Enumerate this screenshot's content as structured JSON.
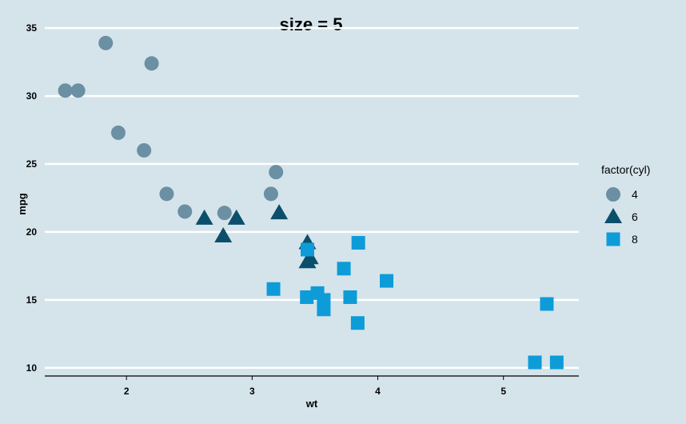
{
  "chart_data": {
    "type": "scatter",
    "title": "size = 5",
    "xlabel": "wt",
    "ylabel": "mpg",
    "xlim": [
      1.35,
      5.6
    ],
    "ylim": [
      9.4,
      35.3
    ],
    "xticks": [
      2,
      3,
      4,
      5
    ],
    "yticks": [
      10,
      15,
      20,
      25,
      30,
      35
    ],
    "grid": "horizontal-major",
    "legend": {
      "title": "factor(cyl)",
      "position": "right"
    },
    "series": [
      {
        "name": "4",
        "shape": "circle",
        "color": "#6b8fa3",
        "points": [
          {
            "x": 2.32,
            "y": 22.8
          },
          {
            "x": 3.19,
            "y": 24.4
          },
          {
            "x": 3.15,
            "y": 22.8
          },
          {
            "x": 2.2,
            "y": 32.4
          },
          {
            "x": 1.615,
            "y": 30.4
          },
          {
            "x": 1.835,
            "y": 33.9
          },
          {
            "x": 2.465,
            "y": 21.5
          },
          {
            "x": 1.935,
            "y": 27.3
          },
          {
            "x": 2.14,
            "y": 26.0
          },
          {
            "x": 1.513,
            "y": 30.4
          },
          {
            "x": 2.78,
            "y": 21.4
          }
        ]
      },
      {
        "name": "6",
        "shape": "triangle",
        "color": "#0b4f6c",
        "points": [
          {
            "x": 2.62,
            "y": 21.0
          },
          {
            "x": 2.875,
            "y": 21.0
          },
          {
            "x": 3.215,
            "y": 21.4
          },
          {
            "x": 3.46,
            "y": 18.1
          },
          {
            "x": 3.44,
            "y": 19.2
          },
          {
            "x": 3.44,
            "y": 17.8
          },
          {
            "x": 2.77,
            "y": 19.7
          }
        ]
      },
      {
        "name": "8",
        "shape": "square",
        "color": "#0d9cd8",
        "points": [
          {
            "x": 3.44,
            "y": 18.7
          },
          {
            "x": 3.57,
            "y": 14.3
          },
          {
            "x": 4.07,
            "y": 16.4
          },
          {
            "x": 3.73,
            "y": 17.3
          },
          {
            "x": 3.78,
            "y": 15.2
          },
          {
            "x": 5.25,
            "y": 10.4
          },
          {
            "x": 5.424,
            "y": 10.4
          },
          {
            "x": 5.345,
            "y": 14.7
          },
          {
            "x": 3.52,
            "y": 15.5
          },
          {
            "x": 3.435,
            "y": 15.2
          },
          {
            "x": 3.84,
            "y": 13.3
          },
          {
            "x": 3.845,
            "y": 19.2
          },
          {
            "x": 3.17,
            "y": 15.8
          },
          {
            "x": 3.57,
            "y": 15.0
          }
        ]
      }
    ]
  }
}
